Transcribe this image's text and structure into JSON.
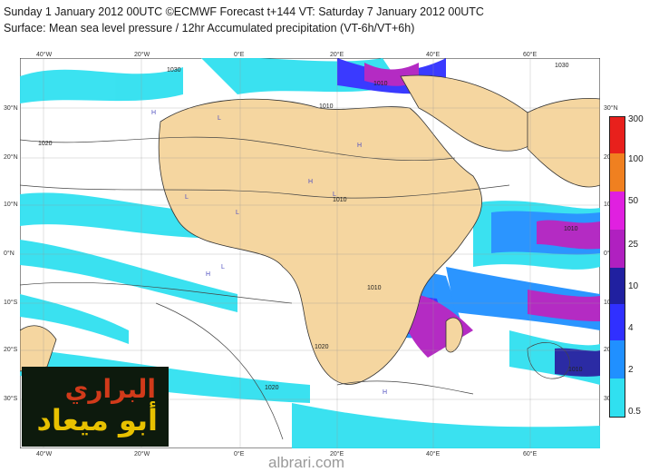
{
  "header": {
    "line1": "Sunday 1 January 2012 00UTC ©ECMWF Forecast t+144 VT: Saturday 7 January 2012 00UTC",
    "line2": "Surface: Mean sea level pressure / 12hr Accumulated precipitation (VT-6h/VT+6h)"
  },
  "map": {
    "lon_labels": [
      "40°W",
      "20°W",
      "0°E",
      "20°E",
      "40°E",
      "60°E"
    ],
    "lat_labels": [
      "30°N",
      "20°N",
      "10°N",
      "0°N",
      "10°S",
      "20°S",
      "30°S"
    ],
    "isobar_labels": [
      "1030",
      "1020",
      "1010",
      "1010",
      "1010",
      "1010",
      "1020",
      "1010",
      "1010",
      "1030",
      "1020"
    ],
    "pressure_marks": [
      "H",
      "L",
      "H",
      "L",
      "H",
      "L",
      "H",
      "L",
      "H",
      "L"
    ]
  },
  "legend": {
    "levels": [
      "300",
      "100",
      "50",
      "25",
      "10",
      "4",
      "2",
      "0.5"
    ],
    "colors": [
      "#e8201c",
      "#f08020",
      "#e020e0",
      "#b020c0",
      "#2020a0",
      "#3030ff",
      "#2090ff",
      "#30e0f0"
    ]
  },
  "logo": {
    "line1": "البراري",
    "line2": "أبو ميعاد"
  },
  "watermark": "albrari.com"
}
